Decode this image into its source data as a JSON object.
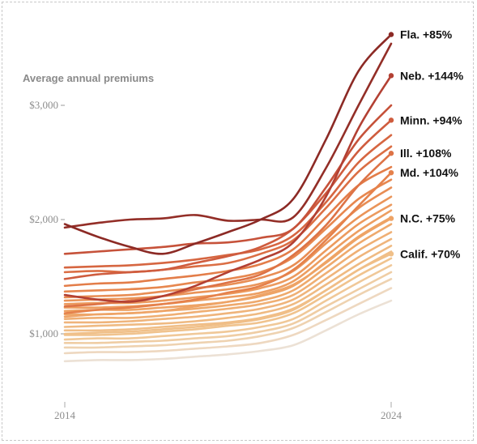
{
  "chart_data": {
    "type": "line",
    "title": "",
    "ylabel": "Average annual premiums",
    "xlabel": "",
    "x": [
      2014,
      2015,
      2016,
      2017,
      2018,
      2019,
      2020,
      2021,
      2022,
      2023,
      2024
    ],
    "xlim": [
      2014,
      2024
    ],
    "ylim": [
      500,
      3600
    ],
    "x_ticks": [
      {
        "value": 2014,
        "label": "2014"
      },
      {
        "value": 2024,
        "label": "2024"
      }
    ],
    "y_ticks": [
      {
        "value": 1000,
        "label": "$1,000"
      },
      {
        "value": 2000,
        "label": "$2,000"
      },
      {
        "value": 3000,
        "label": "$3,000"
      }
    ],
    "grid": false,
    "legend": "none",
    "color_scale": [
      "#ece4dd",
      "#f0c590",
      "#eea264",
      "#e5804a",
      "#d2603f",
      "#b94335",
      "#8c2a25"
    ],
    "series": [
      {
        "name": "Fla.",
        "label": "Fla. +85%",
        "values": [
          1960,
          1850,
          1760,
          1700,
          1790,
          1890,
          2000,
          2180,
          2700,
          3300,
          3620
        ]
      },
      {
        "name": "Neb.",
        "label": "Neb. +144%",
        "values": [
          1340,
          1300,
          1280,
          1330,
          1420,
          1540,
          1650,
          1800,
          2200,
          2800,
          3260
        ]
      },
      {
        "name": "Minn.",
        "label": "Minn. +94%",
        "values": [
          1480,
          1520,
          1540,
          1560,
          1620,
          1680,
          1760,
          1920,
          2230,
          2600,
          2870
        ]
      },
      {
        "name": "Ill.",
        "label": "Ill. +108%",
        "values": [
          1240,
          1260,
          1290,
          1330,
          1390,
          1450,
          1520,
          1690,
          1950,
          2300,
          2580
        ]
      },
      {
        "name": "Md.",
        "label": "Md. +104%",
        "values": [
          1180,
          1210,
          1230,
          1260,
          1300,
          1360,
          1420,
          1560,
          1820,
          2120,
          2410
        ]
      },
      {
        "name": "N.C.",
        "label": "N.C. +75%",
        "values": [
          1150,
          1170,
          1180,
          1200,
          1240,
          1280,
          1340,
          1430,
          1620,
          1840,
          2010
        ]
      },
      {
        "name": "Calif.",
        "label": "Calif. +70%",
        "values": [
          1000,
          1010,
          1020,
          1040,
          1060,
          1090,
          1130,
          1210,
          1380,
          1560,
          1700
        ]
      },
      {
        "values": [
          1930,
          1970,
          2000,
          2010,
          2040,
          1990,
          2000,
          2020,
          2450,
          3000,
          3540
        ]
      },
      {
        "values": [
          1700,
          1720,
          1740,
          1760,
          1790,
          1800,
          1840,
          1920,
          2280,
          2700,
          3000
        ]
      },
      {
        "values": [
          1580,
          1590,
          1600,
          1620,
          1650,
          1690,
          1740,
          1860,
          2150,
          2500,
          2740
        ]
      },
      {
        "values": [
          1540,
          1550,
          1540,
          1560,
          1590,
          1620,
          1700,
          1820,
          2100,
          2420,
          2640
        ]
      },
      {
        "values": [
          1420,
          1440,
          1450,
          1480,
          1510,
          1550,
          1610,
          1740,
          2020,
          2300,
          2460
        ]
      },
      {
        "values": [
          1370,
          1380,
          1390,
          1410,
          1450,
          1480,
          1540,
          1670,
          1920,
          2180,
          2350
        ]
      },
      {
        "values": [
          1320,
          1330,
          1340,
          1370,
          1400,
          1430,
          1490,
          1600,
          1850,
          2100,
          2280
        ]
      },
      {
        "values": [
          1290,
          1300,
          1310,
          1330,
          1360,
          1390,
          1440,
          1550,
          1790,
          2020,
          2200
        ]
      },
      {
        "values": [
          1260,
          1270,
          1270,
          1290,
          1320,
          1350,
          1400,
          1500,
          1730,
          1960,
          2130
        ]
      },
      {
        "values": [
          1230,
          1230,
          1240,
          1260,
          1290,
          1320,
          1360,
          1460,
          1680,
          1900,
          2080
        ]
      },
      {
        "values": [
          1200,
          1210,
          1210,
          1230,
          1250,
          1280,
          1330,
          1420,
          1630,
          1850,
          2020
        ]
      },
      {
        "values": [
          1170,
          1170,
          1180,
          1200,
          1220,
          1250,
          1290,
          1380,
          1580,
          1790,
          1960
        ]
      },
      {
        "values": [
          1130,
          1140,
          1140,
          1160,
          1190,
          1220,
          1260,
          1340,
          1530,
          1730,
          1890
        ]
      },
      {
        "values": [
          1100,
          1100,
          1110,
          1130,
          1150,
          1180,
          1220,
          1300,
          1480,
          1670,
          1830
        ]
      },
      {
        "values": [
          1060,
          1070,
          1080,
          1090,
          1110,
          1140,
          1180,
          1260,
          1430,
          1610,
          1770
        ]
      },
      {
        "values": [
          1030,
          1030,
          1040,
          1060,
          1080,
          1100,
          1140,
          1220,
          1380,
          1560,
          1720
        ]
      },
      {
        "values": [
          990,
          990,
          1000,
          1020,
          1040,
          1070,
          1100,
          1180,
          1340,
          1510,
          1660
        ]
      },
      {
        "values": [
          950,
          960,
          960,
          980,
          1000,
          1020,
          1060,
          1130,
          1290,
          1450,
          1600
        ]
      },
      {
        "values": [
          920,
          920,
          930,
          940,
          960,
          980,
          1020,
          1090,
          1240,
          1390,
          1540
        ]
      },
      {
        "values": [
          880,
          880,
          890,
          900,
          920,
          940,
          980,
          1050,
          1190,
          1340,
          1480
        ]
      },
      {
        "values": [
          830,
          840,
          840,
          850,
          870,
          890,
          920,
          990,
          1120,
          1260,
          1400
        ]
      },
      {
        "values": [
          760,
          770,
          770,
          780,
          800,
          820,
          850,
          900,
          1030,
          1170,
          1290
        ]
      }
    ]
  }
}
